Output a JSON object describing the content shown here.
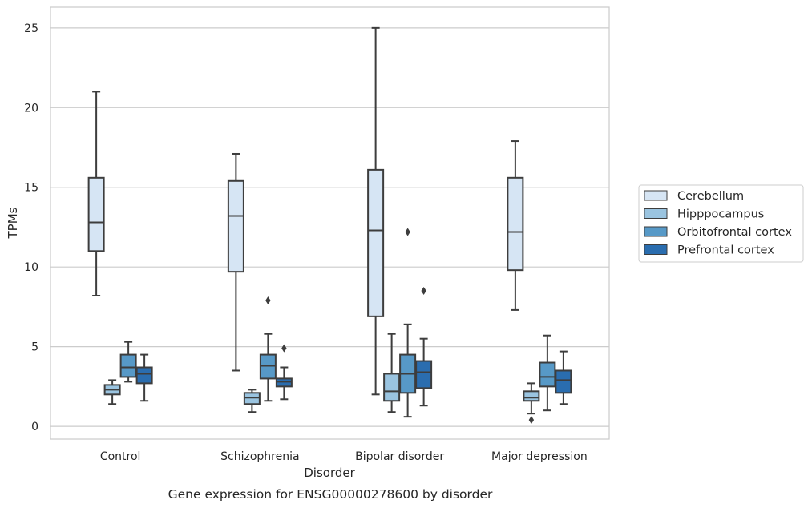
{
  "chart_data": {
    "type": "box",
    "caption": "Gene expression for ENSG00000278600 by disorder",
    "xlabel": "Disorder",
    "ylabel": "TPMs",
    "ylim": [
      -0.8,
      26.3
    ],
    "yticks": [
      0,
      5,
      10,
      15,
      20,
      25
    ],
    "grid": "horizontal",
    "legend_position": "right",
    "categories": [
      "Control",
      "Schizophrenia",
      "Bipolar disorder",
      "Major depression"
    ],
    "series": [
      {
        "name": "Cerebellum",
        "color": "#d6e5f4",
        "boxes": [
          {
            "whisker_low": 8.2,
            "q1": 11.0,
            "median": 12.8,
            "q3": 15.6,
            "whisker_high": 21.0,
            "outliers": []
          },
          {
            "whisker_low": 3.5,
            "q1": 9.7,
            "median": 13.2,
            "q3": 15.4,
            "whisker_high": 17.1,
            "outliers": []
          },
          {
            "whisker_low": 2.0,
            "q1": 6.9,
            "median": 12.3,
            "q3": 16.1,
            "whisker_high": 25.0,
            "outliers": []
          },
          {
            "whisker_low": 7.3,
            "q1": 9.8,
            "median": 12.2,
            "q3": 15.6,
            "whisker_high": 17.9,
            "outliers": []
          }
        ]
      },
      {
        "name": "Hipppocampus",
        "color": "#9ac4e0",
        "boxes": [
          {
            "whisker_low": 1.4,
            "q1": 2.0,
            "median": 2.3,
            "q3": 2.6,
            "whisker_high": 2.9,
            "outliers": []
          },
          {
            "whisker_low": 0.9,
            "q1": 1.4,
            "median": 1.8,
            "q3": 2.1,
            "whisker_high": 2.3,
            "outliers": []
          },
          {
            "whisker_low": 0.9,
            "q1": 1.6,
            "median": 2.2,
            "q3": 3.3,
            "whisker_high": 5.8,
            "outliers": []
          },
          {
            "whisker_low": 0.8,
            "q1": 1.6,
            "median": 1.8,
            "q3": 2.2,
            "whisker_high": 2.7,
            "outliers": [
              0.4
            ]
          }
        ]
      },
      {
        "name": "Orbitofrontal cortex",
        "color": "#5799c7",
        "boxes": [
          {
            "whisker_low": 2.8,
            "q1": 3.1,
            "median": 3.7,
            "q3": 4.5,
            "whisker_high": 5.3,
            "outliers": []
          },
          {
            "whisker_low": 1.6,
            "q1": 3.0,
            "median": 3.8,
            "q3": 4.5,
            "whisker_high": 5.8,
            "outliers": [
              7.9
            ]
          },
          {
            "whisker_low": 0.6,
            "q1": 2.1,
            "median": 3.3,
            "q3": 4.5,
            "whisker_high": 6.4,
            "outliers": [
              12.2
            ]
          },
          {
            "whisker_low": 1.0,
            "q1": 2.5,
            "median": 3.1,
            "q3": 4.0,
            "whisker_high": 5.7,
            "outliers": []
          }
        ]
      },
      {
        "name": "Prefrontal cortex",
        "color": "#2a6daf",
        "boxes": [
          {
            "whisker_low": 1.6,
            "q1": 2.7,
            "median": 3.3,
            "q3": 3.7,
            "whisker_high": 4.5,
            "outliers": []
          },
          {
            "whisker_low": 1.7,
            "q1": 2.5,
            "median": 2.8,
            "q3": 3.0,
            "whisker_high": 3.7,
            "outliers": [
              4.9
            ]
          },
          {
            "whisker_low": 1.3,
            "q1": 2.4,
            "median": 3.4,
            "q3": 4.1,
            "whisker_high": 5.5,
            "outliers": [
              8.5
            ]
          },
          {
            "whisker_low": 1.4,
            "q1": 2.1,
            "median": 2.9,
            "q3": 3.5,
            "whisker_high": 4.7,
            "outliers": []
          }
        ]
      }
    ]
  }
}
